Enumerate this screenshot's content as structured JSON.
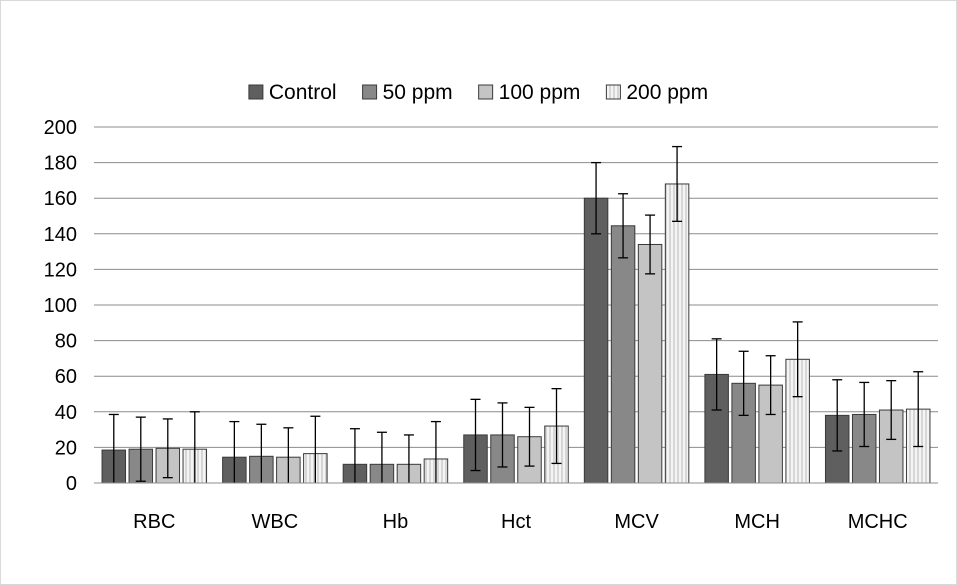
{
  "chart_data": {
    "type": "bar",
    "title": "",
    "xlabel": "",
    "ylabel": "",
    "ylim": [
      0,
      200
    ],
    "ytick_step": 20,
    "grid": true,
    "legend_position": "top",
    "categories": [
      "RBC",
      "WBC",
      "Hb",
      "Hct",
      "MCV",
      "MCH",
      "MCHC"
    ],
    "series": [
      {
        "name": "Control",
        "color": "#5f5f5f",
        "pattern": "solid",
        "values": [
          18.5,
          14.5,
          10.5,
          27,
          160,
          61,
          38
        ],
        "errors": [
          20,
          20,
          20,
          20,
          20,
          20,
          20
        ]
      },
      {
        "name": "50 ppm",
        "color": "#888888",
        "pattern": "solid",
        "values": [
          19,
          15,
          10.5,
          27,
          144.5,
          56,
          38.5
        ],
        "errors": [
          18,
          18,
          18,
          18,
          18,
          18,
          18
        ]
      },
      {
        "name": "100 ppm",
        "color": "#c4c4c4",
        "pattern": "solid",
        "values": [
          19.5,
          14.5,
          10.5,
          26,
          134,
          55,
          41
        ],
        "errors": [
          16.5,
          16.5,
          16.5,
          16.5,
          16.5,
          16.5,
          16.5
        ]
      },
      {
        "name": "200 ppm",
        "color": "#f2f2f2",
        "pattern": "vertical-lines",
        "values": [
          19,
          16.5,
          13.5,
          32,
          168,
          69.5,
          41.5
        ],
        "errors": [
          21,
          21,
          21,
          21,
          21,
          21,
          21
        ]
      }
    ]
  }
}
